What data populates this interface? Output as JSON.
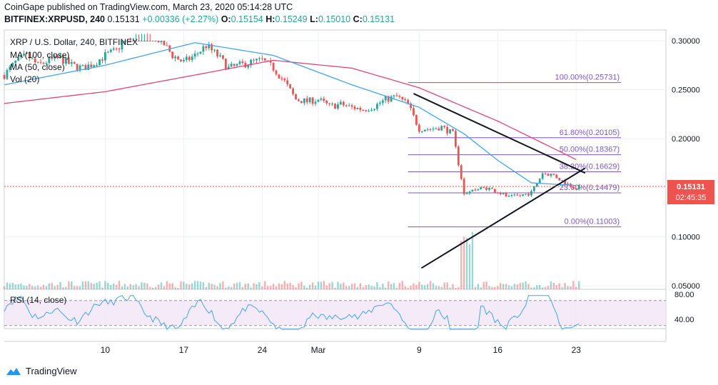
{
  "header": {
    "published": "CoinGape published on TradingView.com, March 23, 2020 05:14:28 UTC",
    "symbol": "BITFINEX:XRPUSD, 240",
    "last": "0.15131",
    "change": "+0.00336 (+2.27%)",
    "o_label": "O:",
    "o": "0.15154",
    "h_label": "H:",
    "h": "0.15249",
    "l_label": "L:",
    "l": "0.15010",
    "c_label": "C:",
    "c": "0.15131"
  },
  "legends": {
    "title": "XRP / U.S. Dollar, 240, BITFINEX",
    "ma100": "MA (100, close)",
    "ma50": "MA (50, close)",
    "vol": "Vol (20)",
    "rsi": "RSI (14, close)"
  },
  "price_badge": {
    "price": "0.15131",
    "countdown": "02:45:35"
  },
  "footer": {
    "brand": "TradingView"
  },
  "colors": {
    "up": "#26a69a",
    "down": "#ef5350",
    "ma100": "#e0457b",
    "ma50": "#42a5f5",
    "fib": "#7e57c2",
    "rsi": "#42a5f5",
    "rsi_band": "#f3e5f5",
    "grid": "#eef1f4",
    "badge": "#ef5350"
  },
  "chart_data": {
    "type": "candlestick",
    "timeframe": "240",
    "ylim": [
      0.05,
      0.3
    ],
    "y_ticks": [
      "0.30000",
      "0.25000",
      "0.20000",
      "0.15000",
      "0.10000",
      "0.05000"
    ],
    "y_tick_values": [
      0.3,
      0.25,
      0.2,
      0.15,
      0.1,
      0.05
    ],
    "x_ticks": [
      "10",
      "17",
      "24",
      "Mar",
      "9",
      "16",
      "23"
    ],
    "x_tick_days": [
      10,
      17,
      24,
      29,
      38,
      45,
      52
    ],
    "day_range": [
      1,
      60
    ],
    "close_path": [
      [
        1,
        0.265
      ],
      [
        2,
        0.278
      ],
      [
        3,
        0.285
      ],
      [
        4,
        0.275
      ],
      [
        5,
        0.28
      ],
      [
        6,
        0.282
      ],
      [
        7,
        0.275
      ],
      [
        8,
        0.272
      ],
      [
        9,
        0.277
      ],
      [
        10,
        0.285
      ],
      [
        11,
        0.29
      ],
      [
        12,
        0.305
      ],
      [
        13,
        0.31
      ],
      [
        14,
        0.305
      ],
      [
        15,
        0.3
      ],
      [
        16,
        0.285
      ],
      [
        17,
        0.278
      ],
      [
        18,
        0.285
      ],
      [
        19,
        0.295
      ],
      [
        20,
        0.285
      ],
      [
        21,
        0.272
      ],
      [
        22,
        0.275
      ],
      [
        23,
        0.278
      ],
      [
        24,
        0.28
      ],
      [
        25,
        0.272
      ],
      [
        26,
        0.258
      ],
      [
        27,
        0.24
      ],
      [
        28,
        0.238
      ],
      [
        29,
        0.24
      ],
      [
        30,
        0.233
      ],
      [
        31,
        0.235
      ],
      [
        32,
        0.232
      ],
      [
        33,
        0.23
      ],
      [
        34,
        0.233
      ],
      [
        35,
        0.24
      ],
      [
        36,
        0.243
      ],
      [
        37,
        0.235
      ],
      [
        38,
        0.21
      ],
      [
        39,
        0.21
      ],
      [
        40,
        0.212
      ],
      [
        41,
        0.205
      ],
      [
        42,
        0.145
      ],
      [
        43,
        0.148
      ],
      [
        44,
        0.15
      ],
      [
        45,
        0.146
      ],
      [
        46,
        0.14
      ],
      [
        47,
        0.142
      ],
      [
        48,
        0.145
      ],
      [
        49,
        0.165
      ],
      [
        50,
        0.163
      ],
      [
        51,
        0.155
      ],
      [
        52,
        0.15
      ],
      [
        52.3,
        0.151
      ]
    ],
    "ma100_path": [
      [
        1,
        0.236
      ],
      [
        10,
        0.248
      ],
      [
        18,
        0.265
      ],
      [
        25,
        0.28
      ],
      [
        32,
        0.272
      ],
      [
        38,
        0.252
      ],
      [
        45,
        0.218
      ],
      [
        50,
        0.19
      ],
      [
        52.3,
        0.177
      ]
    ],
    "ma50_path": [
      [
        1,
        0.255
      ],
      [
        10,
        0.275
      ],
      [
        18,
        0.298
      ],
      [
        25,
        0.285
      ],
      [
        32,
        0.255
      ],
      [
        38,
        0.232
      ],
      [
        42,
        0.205
      ],
      [
        45,
        0.178
      ],
      [
        48,
        0.155
      ],
      [
        52.3,
        0.152
      ]
    ],
    "fibonacci": [
      {
        "label": "100.00%",
        "price": 0.25731,
        "text": "(0.25731)"
      },
      {
        "label": "61.80%",
        "price": 0.20105,
        "text": "(0.20105)"
      },
      {
        "label": "50.00%",
        "price": 0.18367,
        "text": "(0.18367)"
      },
      {
        "label": "38.20%",
        "price": 0.16629,
        "text": "(0.16629)"
      },
      {
        "label": "23.60%",
        "price": 0.14479,
        "text": "(0.14479)"
      },
      {
        "label": "0.00%",
        "price": 0.11003,
        "text": "(0.11003)"
      }
    ],
    "fib_day_range": [
      37,
      56
    ],
    "trendlines": [
      {
        "from": [
          37.5,
          0.246
        ],
        "to": [
          52.8,
          0.165
        ]
      },
      {
        "from": [
          38.2,
          0.068
        ],
        "to": [
          52.8,
          0.17
        ]
      }
    ],
    "current_price": 0.15131,
    "rsi_ylim": [
      0,
      100
    ],
    "rsi_ticks": [
      "80.00",
      "40.00"
    ],
    "rsi_tick_values": [
      80,
      40
    ],
    "rsi_band": [
      30,
      70
    ]
  }
}
